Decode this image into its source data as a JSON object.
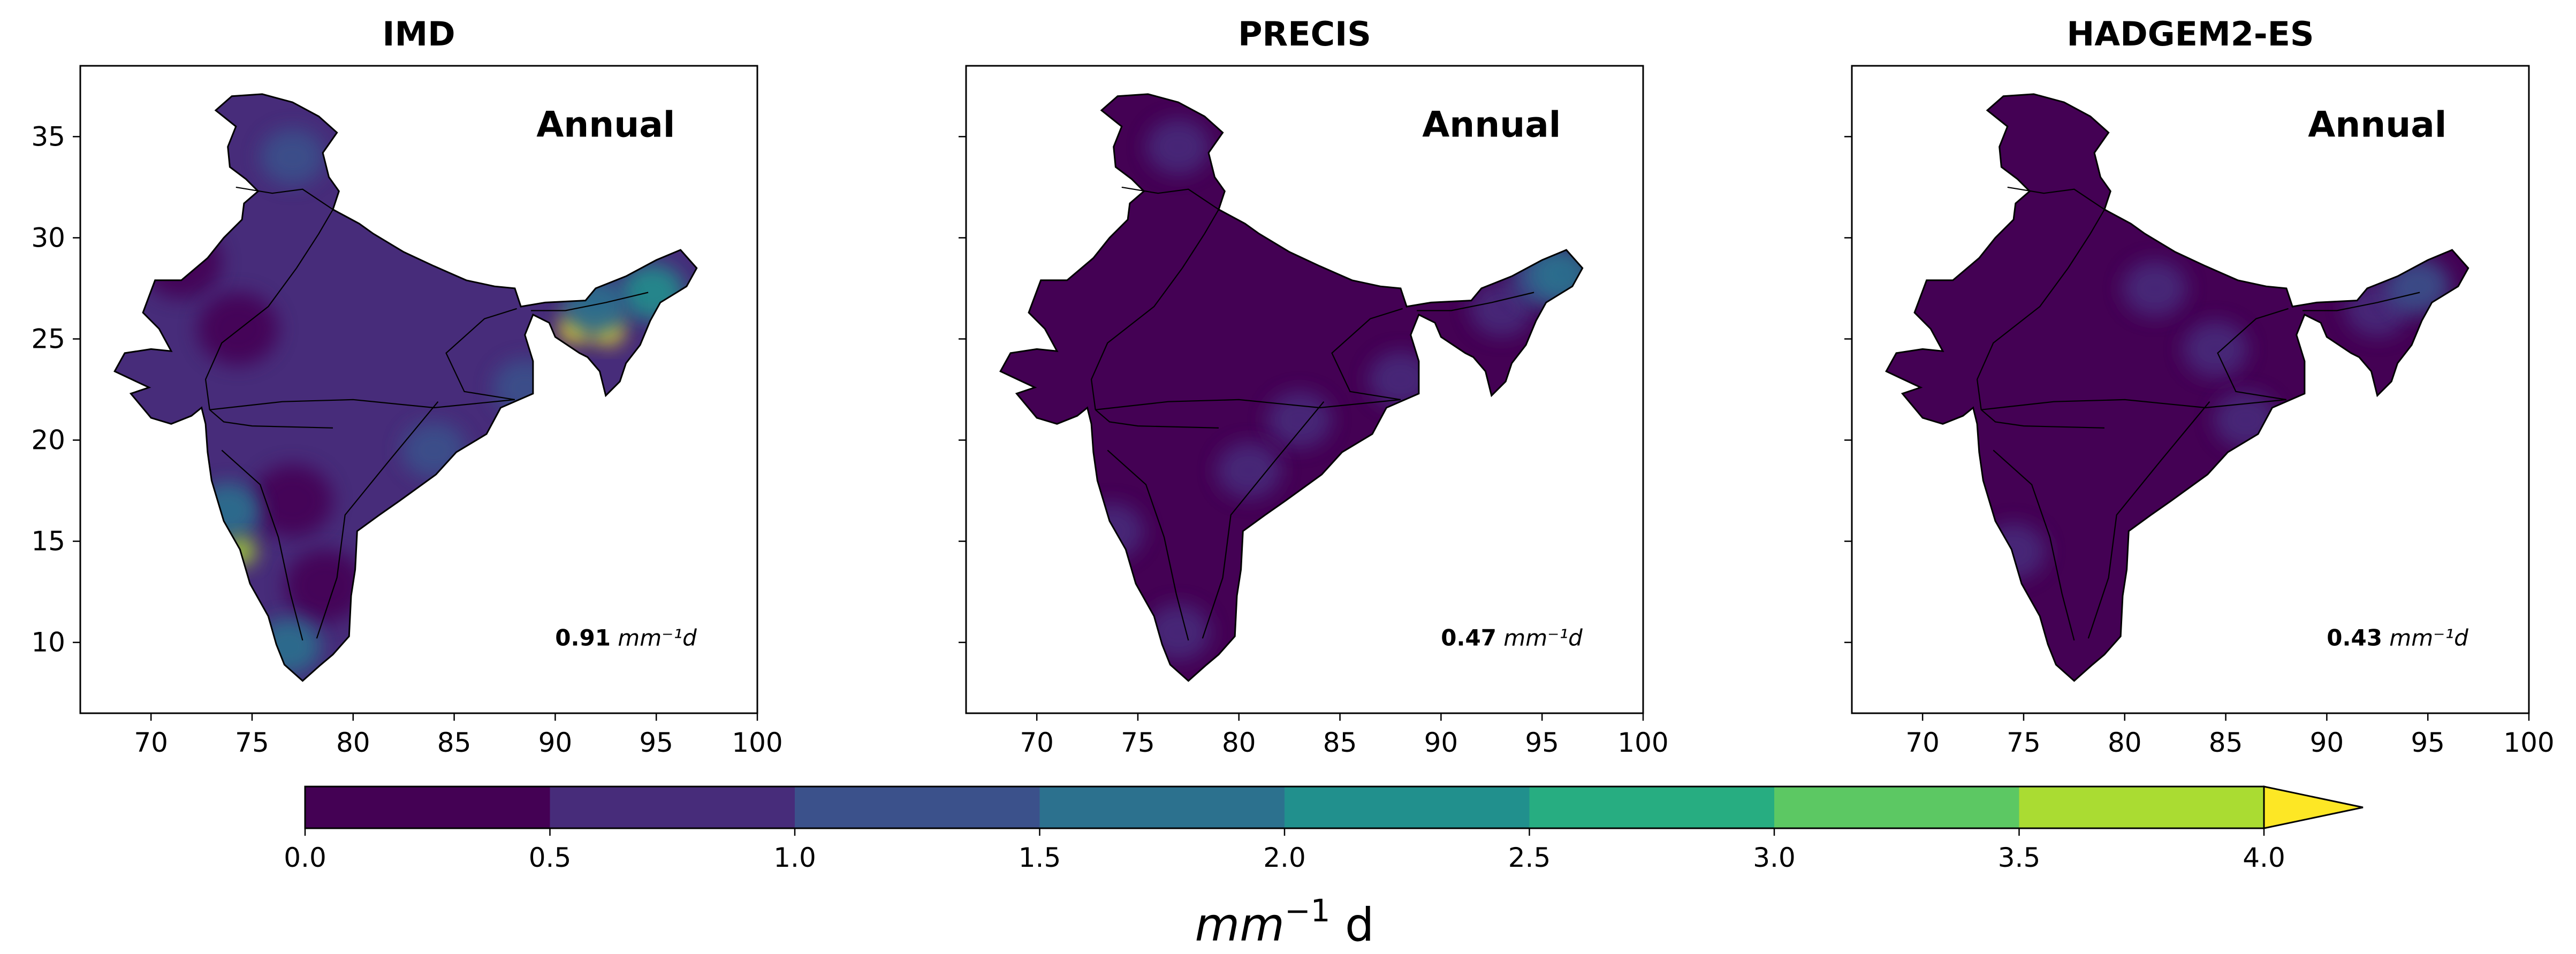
{
  "chart_data": [
    {
      "type": "heatmap",
      "title": "IMD",
      "annotation": "Annual",
      "stat_value": "0.91",
      "stat_unit": "mm⁻¹d",
      "xlim": [
        66.5,
        100
      ],
      "ylim": [
        6.5,
        38.5
      ],
      "xticks": [
        70,
        75,
        80,
        85,
        90,
        95,
        100
      ],
      "yticks": [
        10,
        15,
        20,
        25,
        30,
        35
      ],
      "show_ytick_labels": true,
      "base_level": 1,
      "patches": [
        {
          "lon": 71.5,
          "lat": 28.8,
          "level": 0
        },
        {
          "lon": 74.3,
          "lat": 25.5,
          "level": 0
        },
        {
          "lon": 77.0,
          "lat": 17.0,
          "level": 0
        },
        {
          "lon": 78.6,
          "lat": 12.8,
          "level": 0
        },
        {
          "lon": 77.0,
          "lat": 34.0,
          "level": 2
        },
        {
          "lon": 73.8,
          "lat": 16.5,
          "level": 3
        },
        {
          "lon": 74.4,
          "lat": 14.5,
          "level": 7
        },
        {
          "lon": 92.6,
          "lat": 25.4,
          "level": 8
        },
        {
          "lon": 91.0,
          "lat": 25.5,
          "level": 8
        },
        {
          "lon": 94.8,
          "lat": 27.3,
          "level": 4
        },
        {
          "lon": 92.0,
          "lat": 26.6,
          "level": 3
        },
        {
          "lon": 88.5,
          "lat": 22.6,
          "level": 2
        },
        {
          "lon": 76.8,
          "lat": 9.8,
          "level": 3
        },
        {
          "lon": 84.0,
          "lat": 19.5,
          "level": 2
        }
      ]
    },
    {
      "type": "heatmap",
      "title": "PRECIS",
      "annotation": "Annual",
      "stat_value": "0.47",
      "stat_unit": "mm⁻¹d",
      "xlim": [
        66.5,
        100
      ],
      "ylim": [
        6.5,
        38.5
      ],
      "xticks": [
        70,
        75,
        80,
        85,
        90,
        95,
        100
      ],
      "yticks": [
        10,
        15,
        20,
        25,
        30,
        35
      ],
      "show_ytick_labels": false,
      "base_level": 0,
      "patches": [
        {
          "lon": 77.0,
          "lat": 34.5,
          "level": 1
        },
        {
          "lon": 83.0,
          "lat": 21.0,
          "level": 1
        },
        {
          "lon": 80.5,
          "lat": 18.5,
          "level": 1
        },
        {
          "lon": 73.7,
          "lat": 15.5,
          "level": 1
        },
        {
          "lon": 77.0,
          "lat": 10.5,
          "level": 1
        },
        {
          "lon": 88.0,
          "lat": 23.0,
          "level": 1
        },
        {
          "lon": 93.0,
          "lat": 26.5,
          "level": 1
        },
        {
          "lon": 95.0,
          "lat": 28.0,
          "level": 2
        },
        {
          "lon": 96.0,
          "lat": 28.2,
          "level": 3
        }
      ]
    },
    {
      "type": "heatmap",
      "title": "HADGEM2-ES",
      "annotation": "Annual",
      "stat_value": "0.43",
      "stat_unit": "mm⁻¹d",
      "xlim": [
        66.5,
        100
      ],
      "ylim": [
        6.5,
        38.5
      ],
      "xticks": [
        70,
        75,
        80,
        85,
        90,
        95,
        100
      ],
      "yticks": [
        10,
        15,
        20,
        25,
        30,
        35
      ],
      "show_ytick_labels": false,
      "base_level": 0,
      "patches": [
        {
          "lon": 84.5,
          "lat": 24.5,
          "level": 1
        },
        {
          "lon": 86.0,
          "lat": 21.0,
          "level": 1
        },
        {
          "lon": 81.5,
          "lat": 27.5,
          "level": 1
        },
        {
          "lon": 92.5,
          "lat": 26.5,
          "level": 1
        },
        {
          "lon": 74.5,
          "lat": 14.5,
          "level": 1
        },
        {
          "lon": 94.5,
          "lat": 27.6,
          "level": 2
        }
      ]
    }
  ],
  "colorbar": {
    "levels": [
      0.0,
      0.5,
      1.0,
      1.5,
      2.0,
      2.5,
      3.0,
      3.5,
      4.0
    ],
    "tick_labels": [
      "0.0",
      "0.5",
      "1.0",
      "1.5",
      "2.0",
      "2.5",
      "3.0",
      "3.5",
      "4.0"
    ],
    "colors": [
      "#440154",
      "#472c7a",
      "#3b518b",
      "#2c718e",
      "#21908d",
      "#27ad81",
      "#5cc863",
      "#aadc32",
      "#fde725"
    ],
    "extend": "max",
    "label_main": "mm",
    "label_sup": "−1",
    "label_suffix": " d"
  }
}
